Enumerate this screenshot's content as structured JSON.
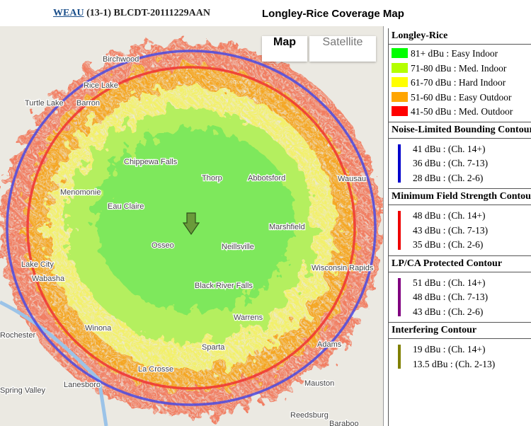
{
  "header": {
    "station_link": "WEAU",
    "station_info": "(13-1) BLCDT-20111229AAN",
    "title": "Longley-Rice Coverage Map"
  },
  "map": {
    "buttons": [
      "Map",
      "Satellite"
    ],
    "places": [
      "Birchwood",
      "Rice Lake",
      "Turtle Lake",
      "Barron",
      "Chippewa Falls",
      "Thorp",
      "Abbotsford",
      "Menomonie",
      "Eau Claire",
      "Osseo",
      "Neillsville",
      "Marshfield",
      "Wausau",
      "Lake City",
      "Wabasha",
      "Black River Falls",
      "Wisconsin Rapids",
      "Winona",
      "La Crosse",
      "Sparta",
      "Warrens",
      "Rochester",
      "Spring Valley",
      "Lanesboro",
      "Mauston",
      "Reedsburg",
      "Adams",
      "Baraboo"
    ]
  },
  "legend": {
    "sections": [
      {
        "title": "Longley-Rice",
        "items": [
          {
            "color": "#00ff00",
            "label": "81+ dBu : Easy Indoor"
          },
          {
            "color": "#b4ff00",
            "label": "71-80 dBu : Med. Indoor"
          },
          {
            "color": "#ffff00",
            "label": "61-70 dBu : Hard Indoor"
          },
          {
            "color": "#ffa500",
            "label": "51-60 dBu : Easy Outdoor"
          },
          {
            "color": "#ff0000",
            "label": "41-50 dBu : Med. Outdoor"
          }
        ]
      },
      {
        "title": "Noise-Limited Bounding Contour",
        "color": "#0000cc",
        "items": [
          "41 dBu : (Ch. 14+)",
          "36 dBu : (Ch. 7-13)",
          "28 dBu : (Ch. 2-6)"
        ]
      },
      {
        "title": "Minimum Field Strength Contour",
        "color": "#ee0000",
        "items": [
          "48 dBu : (Ch. 14+)",
          "43 dBu : (Ch. 7-13)",
          "35 dBu : (Ch. 2-6)"
        ]
      },
      {
        "title": "LP/CA Protected Contour",
        "color": "#800080",
        "items": [
          "51 dBu : (Ch. 14+)",
          "48 dBu : (Ch. 7-13)",
          "43 dBu : (Ch. 2-6)"
        ]
      },
      {
        "title": "Interfering Contour",
        "color": "#808000",
        "items": [
          "19 dBu : (Ch. 14+)",
          "13.5 dBu : (Ch. 2-13)"
        ]
      }
    ]
  }
}
